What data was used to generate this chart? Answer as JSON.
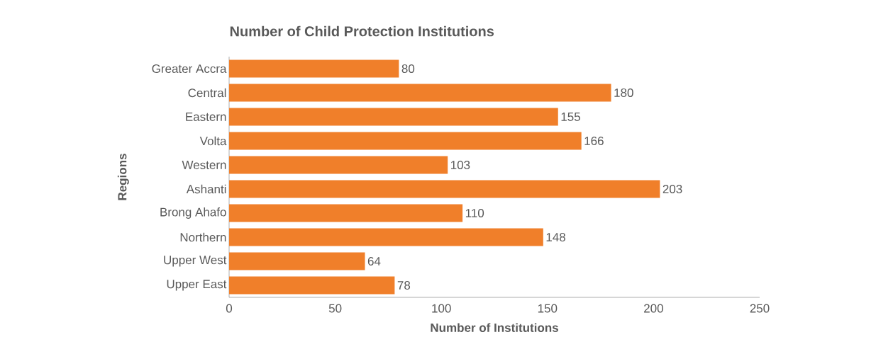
{
  "chart_data": {
    "type": "bar",
    "orientation": "horizontal",
    "title": "Number of Child Protection Institutions",
    "xlabel": "Number of Institutions",
    "ylabel": "Regions",
    "categories": [
      "Greater Accra",
      "Central",
      "Eastern",
      "Volta",
      "Western",
      "Ashanti",
      "Brong Ahafo",
      "Northern",
      "Upper West",
      "Upper East"
    ],
    "values": [
      80,
      180,
      155,
      166,
      103,
      203,
      110,
      148,
      64,
      78
    ],
    "color": "#f07f2a",
    "xlim": [
      0,
      250
    ],
    "xticks": [
      0,
      50,
      100,
      150,
      200,
      250
    ],
    "data_labels": true,
    "grid": false
  }
}
